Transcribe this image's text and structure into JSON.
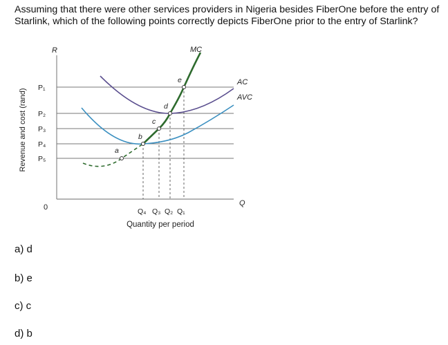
{
  "question": {
    "line1": "Assuming that there were other services providers in Nigeria besides FiberOne before the entry of",
    "line2": "Starlink, which of the following points correctly depicts FiberOne prior to the entry of Starlink?"
  },
  "figure": {
    "ylabel": "Revenue and cost (rand)",
    "xlabel": "Quantity per period",
    "origin": "0",
    "axis_top_label": "R",
    "axis_right_label": "Q",
    "price_labels": [
      "P₁",
      "P₂",
      "P₃",
      "P₄",
      "P₅"
    ],
    "quantity_labels": [
      "Q₄",
      "Q₃",
      "Q₂",
      "Q₁"
    ],
    "curve_labels": {
      "mc": "MC",
      "ac": "AC",
      "avc": "AVC"
    },
    "point_labels": {
      "a": "a",
      "b": "b",
      "c": "c",
      "d": "d",
      "e": "e"
    },
    "colors": {
      "mc": "#2e6b2e",
      "ac": "#5a4e8e",
      "avc": "#3a8fc0",
      "lines": "#777777"
    }
  },
  "options": [
    {
      "label": "a) d"
    },
    {
      "label": "b) e"
    },
    {
      "label": "c) c"
    },
    {
      "label": "d) b"
    }
  ]
}
